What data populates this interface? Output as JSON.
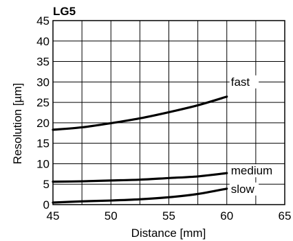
{
  "chart_data": {
    "type": "line",
    "title": "LG5",
    "xlabel": "Distance [mm]",
    "ylabel": "Resolution [µm]",
    "xlim": [
      45,
      65
    ],
    "ylim": [
      0,
      45
    ],
    "xticks": [
      45,
      50,
      55,
      60,
      65
    ],
    "yticks": [
      0,
      5,
      10,
      15,
      20,
      25,
      30,
      35,
      40,
      45
    ],
    "grid": true,
    "colors": {
      "line": "#000000",
      "grid": "#000000",
      "background": "#ffffff"
    },
    "series": [
      {
        "name": "fast",
        "x": [
          45,
          47.5,
          50,
          52.5,
          55,
          57.5,
          60
        ],
        "y": [
          18.3,
          18.9,
          19.9,
          21.1,
          22.6,
          24.3,
          26.4
        ]
      },
      {
        "name": "medium",
        "x": [
          45,
          47.5,
          50,
          52.5,
          55,
          57.5,
          60
        ],
        "y": [
          5.6,
          5.7,
          5.9,
          6.1,
          6.5,
          6.9,
          7.7
        ]
      },
      {
        "name": "slow",
        "x": [
          45,
          47.5,
          50,
          52.5,
          55,
          57.5,
          60
        ],
        "y": [
          0.5,
          0.8,
          1.0,
          1.3,
          1.8,
          2.6,
          3.9
        ]
      }
    ]
  }
}
